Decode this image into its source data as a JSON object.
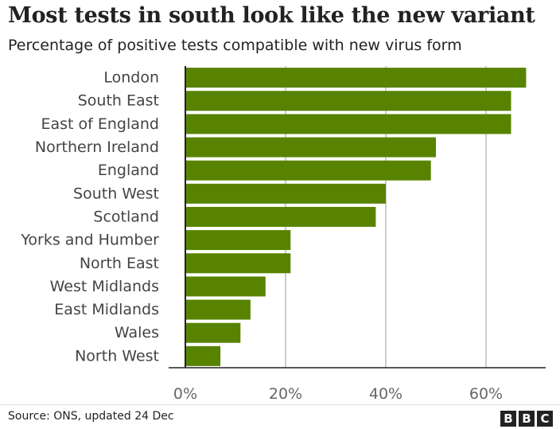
{
  "header": {
    "title": "Most tests in south look like the new variant",
    "subtitle": "Percentage of positive tests compatible with new virus form"
  },
  "footer": {
    "source": "Source: ONS, updated 24 Dec",
    "logo_letters": [
      "B",
      "B",
      "C"
    ]
  },
  "colors": {
    "bar": "#588300",
    "grid": "#cccccc",
    "axis": "#222222",
    "text": "#222222",
    "tick_text": "#666666"
  },
  "chart_data": {
    "type": "bar",
    "orientation": "horizontal",
    "title": "Most tests in south look like the new variant",
    "subtitle": "Percentage of positive tests compatible with new virus form",
    "categories": [
      "London",
      "South East",
      "East of England",
      "Northern Ireland",
      "England",
      "South West",
      "Scotland",
      "Yorks and Humber",
      "North East",
      "West Midlands",
      "East Midlands",
      "Wales",
      "North West"
    ],
    "values": [
      68,
      65,
      65,
      50,
      49,
      40,
      38,
      21,
      21,
      16,
      13,
      11,
      7
    ],
    "xlim": [
      0,
      70
    ],
    "x_ticks": [
      0,
      20,
      40,
      60
    ],
    "x_tick_labels": [
      "0%",
      "20%",
      "40%",
      "60%"
    ],
    "grid": true,
    "legend": false
  }
}
